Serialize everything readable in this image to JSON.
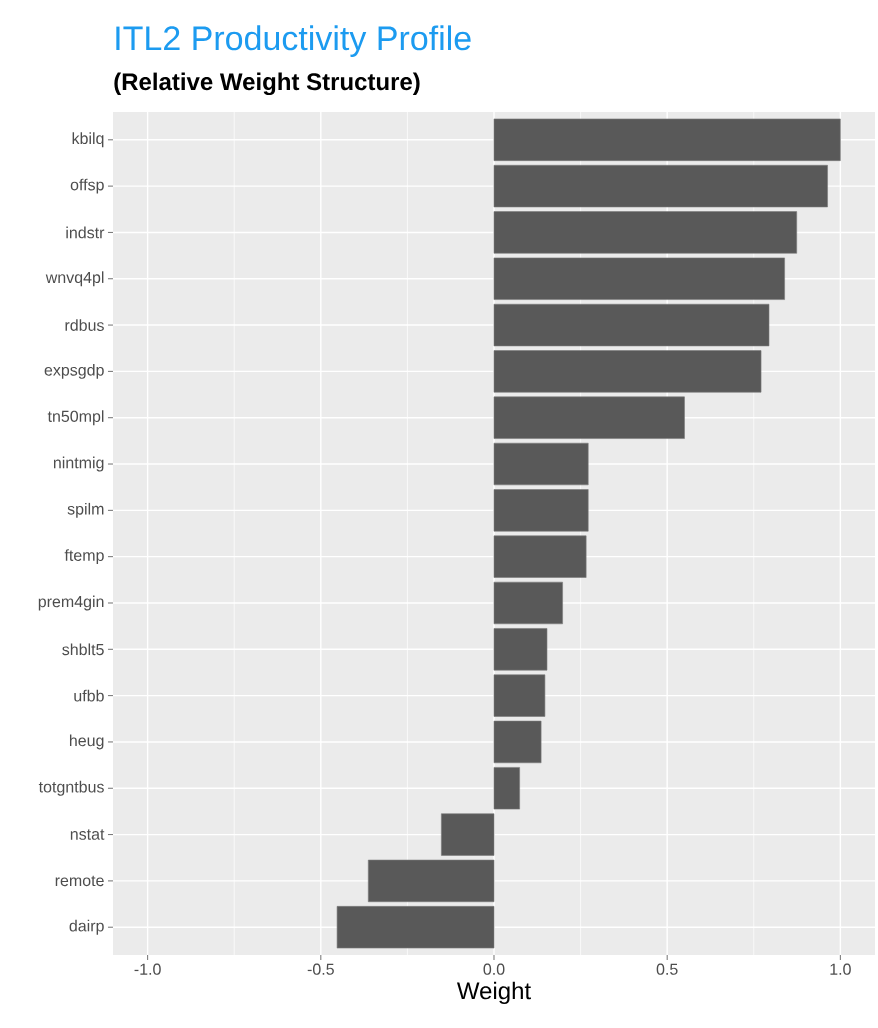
{
  "chart_data": {
    "type": "bar",
    "orientation": "horizontal",
    "title": "ITL2 Productivity Profile",
    "subtitle": "(Relative Weight Structure)",
    "xlabel": "Weight",
    "categories": [
      "kbilq",
      "offsp",
      "indstr",
      "wnvq4pl",
      "rdbus",
      "expsgdp",
      "tn50mpl",
      "nintmig",
      "spilm",
      "ftemp",
      "prem4gin",
      "shblt5",
      "ufbb",
      "heug",
      "totgntbus",
      "nstat",
      "remote",
      "dairp"
    ],
    "values": [
      1.0,
      0.963,
      0.874,
      0.839,
      0.794,
      0.771,
      0.55,
      0.272,
      0.272,
      0.266,
      0.198,
      0.153,
      0.147,
      0.136,
      0.074,
      -0.152,
      -0.363,
      -0.453
    ],
    "color": "#595959",
    "xlim": [
      -1.1,
      1.1
    ],
    "xticks": [
      {
        "value": -1,
        "label": "-1.0"
      },
      -0.5,
      {
        "value": 0,
        "label": "0.0"
      },
      0.5,
      {
        "value": 1,
        "label": "1.0"
      }
    ],
    "grid": true
  }
}
